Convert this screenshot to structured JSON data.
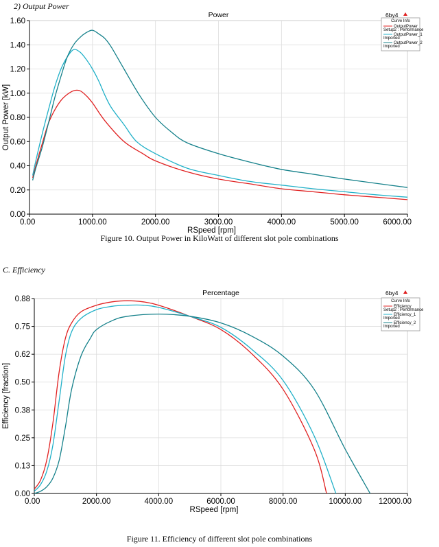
{
  "headings": {
    "output_power": "2)    Output Power",
    "efficiency": "C.   Efficiency"
  },
  "captions": {
    "fig10": "Figure 10. Output Power in KiloWatt of different slot pole combinations",
    "fig11": "Figure 11. Efficiency of different slot pole combinations"
  },
  "chart_data": [
    {
      "type": "line",
      "title": "Power",
      "tag": "6by4",
      "xlabel": "RSpeed [rpm]",
      "ylabel": "Output Power [kW]",
      "xlim": [
        0,
        6000
      ],
      "ylim": [
        0,
        1.6
      ],
      "xticks": [
        "0.00",
        "1000.00",
        "2000.00",
        "3000.00",
        "4000.00",
        "5000.00",
        "6000.00"
      ],
      "yticks": [
        "0.00",
        "0.20",
        "0.40",
        "0.60",
        "0.80",
        "1.00",
        "1.20",
        "1.40",
        "1.60"
      ],
      "legend": {
        "heading": "Curve Info",
        "placement": "top-right",
        "entries": [
          {
            "line1": "OutputPower",
            "line2": "Setup2 : Performance"
          },
          {
            "line1": "OutputPower_1",
            "line2": "Imported"
          },
          {
            "line1": "OutputPower_2",
            "line2": "Imported"
          }
        ]
      },
      "series": [
        {
          "name": "OutputPower",
          "color": "#e02020",
          "x": [
            50,
            100,
            200,
            300,
            400,
            500,
            600,
            700,
            800,
            900,
            1000,
            1200,
            1500,
            1800,
            2000,
            2500,
            3000,
            3500,
            4000,
            4500,
            5000,
            5500,
            6000
          ],
          "y": [
            0.3,
            0.4,
            0.58,
            0.75,
            0.86,
            0.94,
            0.99,
            1.02,
            1.02,
            0.98,
            0.92,
            0.77,
            0.6,
            0.5,
            0.44,
            0.35,
            0.29,
            0.25,
            0.21,
            0.185,
            0.16,
            0.14,
            0.12
          ]
        },
        {
          "name": "OutputPower_1",
          "color": "#20b0c8",
          "x": [
            50,
            100,
            200,
            300,
            400,
            500,
            600,
            700,
            800,
            900,
            1000,
            1100,
            1200,
            1300,
            1500,
            1700,
            2000,
            2500,
            3000,
            3500,
            4000,
            4500,
            5000,
            5500,
            6000
          ],
          "y": [
            0.32,
            0.44,
            0.66,
            0.86,
            1.05,
            1.2,
            1.3,
            1.36,
            1.34,
            1.28,
            1.2,
            1.1,
            0.98,
            0.88,
            0.74,
            0.6,
            0.5,
            0.38,
            0.32,
            0.27,
            0.24,
            0.21,
            0.185,
            0.16,
            0.14
          ]
        },
        {
          "name": "OutputPower_2",
          "color": "#14808a",
          "x": [
            50,
            100,
            200,
            300,
            400,
            500,
            600,
            700,
            800,
            900,
            1000,
            1100,
            1200,
            1300,
            1500,
            1750,
            2000,
            2250,
            2500,
            3000,
            3500,
            4000,
            4500,
            5000,
            5500,
            6000
          ],
          "y": [
            0.28,
            0.38,
            0.55,
            0.75,
            0.96,
            1.14,
            1.3,
            1.4,
            1.46,
            1.5,
            1.52,
            1.49,
            1.45,
            1.38,
            1.2,
            0.98,
            0.8,
            0.68,
            0.59,
            0.5,
            0.43,
            0.37,
            0.33,
            0.29,
            0.255,
            0.22
          ]
        }
      ]
    },
    {
      "type": "line",
      "title": "Percentage",
      "tag": "6by4",
      "xlabel": "RSpeed [rpm]",
      "ylabel": "Efficiency [fraction]",
      "xlim": [
        0,
        12000
      ],
      "ylim": [
        0,
        0.88
      ],
      "xticks": [
        "0.00",
        "2000.00",
        "4000.00",
        "6000.00",
        "8000.00",
        "10000.00",
        "12000.00"
      ],
      "yticks": [
        "0.00",
        "0.13",
        "0.25",
        "0.38",
        "0.50",
        "0.62",
        "0.75",
        "0.88"
      ],
      "legend": {
        "heading": "Curve Info",
        "placement": "top-right",
        "entries": [
          {
            "line1": "Efficiency",
            "line2": "Setup2 : Performance"
          },
          {
            "line1": "Efficiency_1",
            "line2": "Imported"
          },
          {
            "line1": "Efficiency_2",
            "line2": "Imported"
          }
        ]
      },
      "series": [
        {
          "name": "Efficiency",
          "color": "#e02020",
          "x": [
            0,
            200,
            400,
            600,
            800,
            1000,
            1200,
            1500,
            2000,
            2500,
            3000,
            3500,
            4000,
            5000,
            6000,
            7000,
            8000,
            9000,
            9400
          ],
          "y": [
            0.02,
            0.06,
            0.15,
            0.32,
            0.55,
            0.7,
            0.77,
            0.82,
            0.85,
            0.865,
            0.87,
            0.865,
            0.85,
            0.8,
            0.74,
            0.63,
            0.47,
            0.2,
            0.0
          ]
        },
        {
          "name": "Efficiency_1",
          "color": "#20b0c8",
          "x": [
            0,
            200,
            400,
            600,
            800,
            1000,
            1200,
            1500,
            2000,
            2500,
            3000,
            3500,
            4000,
            5000,
            6000,
            7000,
            8000,
            9000,
            9700
          ],
          "y": [
            0.01,
            0.04,
            0.1,
            0.22,
            0.42,
            0.62,
            0.73,
            0.79,
            0.83,
            0.845,
            0.85,
            0.85,
            0.84,
            0.8,
            0.75,
            0.65,
            0.51,
            0.26,
            0.0
          ]
        },
        {
          "name": "Efficiency_2",
          "color": "#14808a",
          "x": [
            0,
            200,
            400,
            600,
            800,
            1000,
            1200,
            1500,
            1800,
            2000,
            2500,
            3000,
            4000,
            5000,
            6000,
            7000,
            8000,
            9000,
            10000,
            10800
          ],
          "y": [
            0.0,
            0.01,
            0.03,
            0.07,
            0.15,
            0.3,
            0.47,
            0.62,
            0.7,
            0.74,
            0.78,
            0.8,
            0.81,
            0.8,
            0.77,
            0.71,
            0.62,
            0.47,
            0.2,
            0.0
          ]
        }
      ]
    }
  ]
}
